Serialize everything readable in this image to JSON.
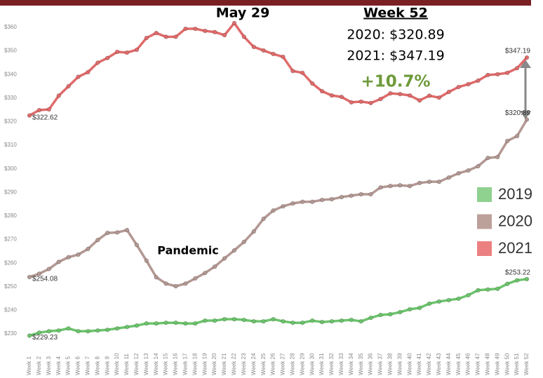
{
  "chart_data": {
    "type": "line",
    "categories": [
      "Week 1",
      "Week 2",
      "Week 3",
      "Week 4",
      "Week 5",
      "Week 6",
      "Week 7",
      "Week 8",
      "Week 9",
      "Week 10",
      "Week 11",
      "Week 12",
      "Week 13",
      "Week 14",
      "Week 15",
      "Week 16",
      "Week 17",
      "Week 18",
      "Week 19",
      "Week 20",
      "Week 21",
      "Week 22",
      "Week 23",
      "Week 24",
      "Week 25",
      "Week 26",
      "Week 27",
      "Week 28",
      "Week 29",
      "Week 30",
      "Week 31",
      "Week 32",
      "Week 33",
      "Week 34",
      "Week 35",
      "Week 36",
      "Week 37",
      "Week 38",
      "Week 39",
      "Week 40",
      "Week 41",
      "Week 42",
      "Week 43",
      "Week 44",
      "Week 45",
      "Week 46",
      "Week 47",
      "Week 48",
      "Week 49",
      "Week 50",
      "Week 51",
      "Week 52"
    ],
    "series": [
      {
        "name": "2019",
        "color": "#6cc46c",
        "legend_color": "#8fd18f",
        "values": [
          229.23,
          230.5,
          231.1,
          231.4,
          232.3,
          231.1,
          231.1,
          231.4,
          231.7,
          232.3,
          232.9,
          233.5,
          234.4,
          234.4,
          234.7,
          234.7,
          234.4,
          234.4,
          235.6,
          235.6,
          236.2,
          236.2,
          235.9,
          235.3,
          235.3,
          236.2,
          235.3,
          234.7,
          234.7,
          235.6,
          235,
          235.3,
          235.6,
          235.9,
          235.3,
          236.8,
          238,
          238.3,
          239.2,
          240.4,
          241,
          242.8,
          243.7,
          244.3,
          244.9,
          246.4,
          248.5,
          248.8,
          249.1,
          251.2,
          252.7,
          253.22
        ],
        "value_labels": [
          "$229.23",
          null,
          null,
          null,
          null,
          null,
          null,
          null,
          null,
          null,
          null,
          null,
          null,
          null,
          null,
          null,
          null,
          null,
          null,
          null,
          null,
          null,
          null,
          null,
          null,
          null,
          null,
          null,
          null,
          null,
          null,
          null,
          null,
          null,
          null,
          null,
          null,
          null,
          null,
          null,
          null,
          null,
          null,
          null,
          null,
          null,
          null,
          null,
          null,
          null,
          null,
          "$253.22"
        ]
      },
      {
        "name": "2020",
        "color": "#b39893",
        "legend_color": "#bca09a",
        "values": [
          254.08,
          255.5,
          257.5,
          260.5,
          262.5,
          263.6,
          266,
          269.8,
          272.8,
          273,
          274,
          267.7,
          261,
          254,
          251.3,
          250.2,
          251.3,
          253.5,
          255.8,
          258.5,
          262,
          265.4,
          269,
          273.4,
          278.8,
          282.3,
          284.1,
          285.3,
          286,
          286,
          286.8,
          287.1,
          288,
          288.6,
          289.2,
          289.2,
          292.1,
          292.7,
          293,
          292.7,
          294,
          294.5,
          294.5,
          296.3,
          298.1,
          299.3,
          301.1,
          304.6,
          305,
          311.8,
          313.9,
          320.89
        ],
        "value_labels": [
          "$254.08",
          null,
          null,
          null,
          null,
          null,
          null,
          null,
          null,
          null,
          null,
          null,
          null,
          null,
          null,
          null,
          null,
          null,
          null,
          null,
          null,
          null,
          null,
          null,
          null,
          null,
          null,
          null,
          null,
          null,
          null,
          null,
          null,
          null,
          null,
          null,
          null,
          null,
          null,
          null,
          null,
          null,
          null,
          null,
          null,
          null,
          null,
          null,
          null,
          null,
          null,
          "$320.89"
        ]
      },
      {
        "name": "2021",
        "color": "#e06b6b",
        "legend_color": "#ec8080",
        "values": [
          322.62,
          324.9,
          325.2,
          331,
          335,
          339,
          341,
          345,
          347,
          349.6,
          349.3,
          350.5,
          355.5,
          357.6,
          356,
          356,
          359.4,
          359.4,
          358.5,
          358,
          356.7,
          361.8,
          356,
          351.7,
          350.2,
          348.7,
          347.5,
          341.5,
          340.7,
          336.2,
          332.9,
          331.1,
          330.5,
          328.2,
          328.5,
          327.9,
          329.6,
          332,
          331.7,
          331.1,
          329,
          331,
          330.2,
          332.6,
          334.7,
          335.9,
          337.4,
          339.8,
          340.1,
          340.7,
          342.7,
          347.19
        ],
        "value_labels": [
          "$322.62",
          null,
          null,
          null,
          null,
          null,
          null,
          null,
          null,
          null,
          null,
          null,
          null,
          null,
          null,
          null,
          null,
          null,
          null,
          null,
          null,
          null,
          null,
          null,
          null,
          null,
          null,
          null,
          null,
          null,
          null,
          null,
          null,
          null,
          null,
          null,
          null,
          null,
          null,
          null,
          null,
          null,
          null,
          null,
          null,
          null,
          null,
          null,
          null,
          null,
          null,
          "$347.19"
        ]
      }
    ],
    "ylim": [
      230,
      360
    ],
    "yticks": [
      {
        "value": 230,
        "label": "$230"
      },
      {
        "value": 240,
        "label": "$240"
      },
      {
        "value": 250,
        "label": "$250"
      },
      {
        "value": 260,
        "label": "$260"
      },
      {
        "value": 270,
        "label": "$270"
      },
      {
        "value": 280,
        "label": "$280"
      },
      {
        "value": 290,
        "label": "$290"
      },
      {
        "value": 300,
        "label": "$300"
      },
      {
        "value": 310,
        "label": "$310"
      },
      {
        "value": 320,
        "label": "$320"
      },
      {
        "value": 330,
        "label": "$330"
      },
      {
        "value": 340,
        "label": "$340"
      },
      {
        "value": 350,
        "label": "$350"
      },
      {
        "value": 360,
        "label": "$360"
      }
    ],
    "grid": false,
    "legend_position": "right",
    "annotations": {
      "peak": "May 29",
      "week": "Week 52",
      "line_2020": "2020: $320.89",
      "line_2021": "2021: $347.19",
      "change": "+10.7%",
      "event": "Pandemic"
    }
  }
}
